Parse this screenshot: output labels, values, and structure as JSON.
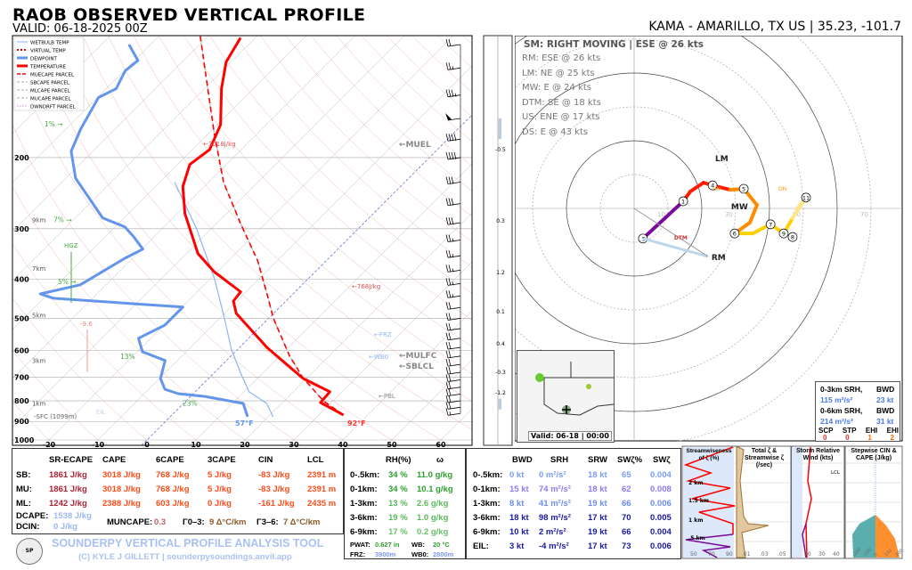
{
  "header": {
    "title": "RAOB OBSERVED VERTICAL PROFILE",
    "valid": "VALID: 06-18-2025 00Z",
    "station": "KAMA - AMARILLO, TX US | 35.23, -101.7"
  },
  "legend": [
    "WETBULB TEMP",
    "VIRTUAL TEMP",
    "DEWPOINT",
    "TEMPERATURE",
    "MUECAPE PARCEL",
    "SBCAPE PARCEL",
    "MLCAPE PARCEL",
    "MUCAPE PARCEL",
    "DWNDRFT PARCEL"
  ],
  "colors": {
    "temperature": "#ff0000",
    "dewpoint": "#6495ed",
    "wetbulb": "#8fb3f5",
    "parcel": "#ff0000",
    "rh": "#2e9e2e",
    "hodo_0_1": "#7a0a9a",
    "hodo_1_3": "#ff1a00",
    "hodo_3_6": "#ff8c00",
    "hodo_6_9": "#ffd000",
    "hodo_9_12": "#ffe58a"
  },
  "chart_data": [
    {
      "type": "line",
      "name": "skew-t",
      "ylabel": "",
      "xlim": [
        -20,
        60
      ],
      "ylim": [
        1000,
        100
      ],
      "grid": true,
      "legend_placement": "top-left",
      "xticks": [
        -20,
        -10,
        0,
        10,
        20,
        30,
        40,
        50,
        60
      ],
      "yticks": [
        1000,
        900,
        800,
        700,
        600,
        500,
        400,
        300,
        200
      ],
      "temperature": {
        "pressure": [
          867,
          808,
          760,
          704,
          590,
          486,
          453,
          430,
          383,
          346,
          275,
          236,
          208,
          191,
          166,
          135,
          116,
          101
        ],
        "values": [
          35,
          27.8,
          27.5,
          19.3,
          5.6,
          -7.6,
          -10.7,
          -11.1,
          -20.7,
          -27.6,
          -38.5,
          -44.4,
          -47.5,
          -46.5,
          -49.3,
          -56.5,
          -61,
          -63
        ]
      },
      "dewpoint": {
        "pressure": [
          876,
          812,
          780,
          768,
          749,
          704,
          636,
          605,
          560,
          520,
          469,
          446,
          435,
          413,
          355,
          337,
          313,
          297,
          282,
          225,
          193,
          170,
          142,
          135,
          122,
          115,
          105
        ],
        "values": [
          15.8,
          12.2,
          2.9,
          -3.1,
          -6.7,
          -9.8,
          -12.5,
          -18.9,
          -22.5,
          -19.8,
          -19.8,
          -48,
          -51.6,
          -45.3,
          -41.6,
          -39.8,
          -44.4,
          -48,
          -54.4,
          -68,
          -74.4,
          -77,
          -79.8,
          -78,
          -79.8,
          -79.3,
          -84.4
        ]
      },
      "wetbulb": {
        "pressure": [
          876,
          812,
          760,
          690,
          600,
          500,
          400,
          300,
          230
        ],
        "values": [
          21,
          17,
          11,
          6,
          -1,
          -9,
          -19,
          -33,
          -47
        ]
      },
      "mu_parcel": {
        "pressure": [
          867,
          800,
          700,
          620,
          500,
          435,
          360,
          290,
          230,
          174,
          100
        ],
        "values": [
          35,
          28,
          19,
          12,
          1,
          -5.3,
          -14,
          -25.3,
          -37,
          -48.9,
          -71.6
        ]
      },
      "surface_temp_label": "92°F",
      "surface_dewpoint_label": "57°F",
      "annotations": {
        "mucape": "←3018J/kg",
        "mu6cape": "←768J/kg",
        "muel": "←MUEL",
        "frz": "←FRZ",
        "wb0": "←WB0",
        "mulfc": "←MULFC",
        "sblcl": "←SBLCL",
        "pbl": "←PBL",
        "eil": "EIL",
        "sfc": "-SFC (1099m)",
        "hgz": "HGZ",
        "neg": "-9.6"
      },
      "heights": [
        {
          "label": "1km",
          "p": 810
        },
        {
          "label": "3km",
          "p": 635
        },
        {
          "label": "5km",
          "p": 490
        },
        {
          "label": "7km",
          "p": 375
        },
        {
          "label": "9km",
          "p": 285
        }
      ],
      "rh_labels": [
        {
          "label": "1% →",
          "p": 165
        },
        {
          "label": "7% →",
          "p": 285
        },
        {
          "label": "5% →",
          "p": 405
        },
        {
          "label": "13%",
          "p": 620
        },
        {
          "label": "23%",
          "p": 810
        }
      ],
      "winds": {
        "pressure": [
          860,
          830,
          800,
          770,
          740,
          710,
          680,
          650,
          620,
          590,
          560,
          530,
          500,
          470,
          440,
          410,
          380,
          350,
          320,
          290,
          260,
          230,
          200,
          180,
          160,
          140,
          120,
          105
        ],
        "speed_kt": [
          15,
          20,
          20,
          20,
          20,
          20,
          20,
          20,
          20,
          20,
          20,
          20,
          20,
          20,
          25,
          25,
          25,
          25,
          25,
          30,
          30,
          30,
          40,
          40,
          50,
          35,
          25,
          20
        ]
      },
      "omega_labels": [
        "-0.5",
        "0.3",
        "1.2",
        "0.1",
        "0.4",
        "-0.3",
        "-1.2"
      ]
    },
    {
      "type": "line",
      "name": "hodograph",
      "rings_kt": [
        10,
        30,
        50,
        70
      ],
      "u": [
        2.6,
        14.5,
        16.6,
        20.5,
        23.2,
        28.4,
        32.4,
        36.3,
        34.2,
        29.7,
        35,
        40.3,
        44.2,
        46.8,
        50.8,
        48
      ],
      "v": [
        -8.9,
        2.1,
        5,
        7.6,
        6.8,
        5.5,
        5.8,
        1,
        -4.2,
        -7.4,
        -7.4,
        -4.7,
        -7.4,
        -2.9,
        3.2,
        -0.3
      ],
      "segment": [
        0,
        0,
        1,
        1,
        1,
        1,
        2,
        2,
        2,
        2,
        3,
        3,
        3,
        3,
        4,
        4
      ],
      "markers": [
        {
          "label": ".5",
          "i": 0
        },
        {
          "label": "1",
          "i": 1
        },
        {
          "label": "4",
          "i": 4
        },
        {
          "label": "5",
          "i": 6
        },
        {
          "label": "6",
          "i": 9
        },
        {
          "label": "7",
          "i": 11
        },
        {
          "label": "9",
          "i": 12
        },
        {
          "label": "8",
          "i": 12
        },
        {
          "label": "11",
          "i": 14
        }
      ],
      "motions": [
        {
          "label": "RM",
          "u": 21.8,
          "v": -14.2
        },
        {
          "label": "LM",
          "u": 22.9,
          "v": 15
        },
        {
          "label": "MW",
          "u": 27.6,
          "v": 0.8
        },
        {
          "label": "DTM",
          "u": 13.9,
          "v": -10.3
        }
      ],
      "un_label": "UN",
      "dn_label": "DN"
    }
  ],
  "hodo_text": {
    "sm": "SM: RIGHT MOVING | ESE @ 26 kts",
    "lines": [
      "RM: ESE @ 26 kts",
      "LM: NE @ 25 kts",
      "MW: E @ 24 kts",
      "DTM: SE @ 18 kts",
      "US: ENE @ 17 kts",
      "DS: E @ 43 kts"
    ]
  },
  "srh_box": {
    "h1": "0-3km SRH,",
    "b1": "BWD",
    "v1": "115 m²/s²",
    "w1": "23 kt",
    "h2": "0-6km SRH,",
    "b2": "BWD",
    "v2": "214 m²/s²",
    "w2": "31 kt",
    "labels": [
      "SCP",
      "STP",
      "EHI",
      "EHI"
    ],
    "values": [
      "0",
      "0",
      "1",
      "2"
    ]
  },
  "map": {
    "valid": "Valid: 06-18 | 00:00"
  },
  "thermo": {
    "headers": [
      "SR-ECAPE",
      "CAPE",
      "6CAPE",
      "3CAPE",
      "CIN",
      "LCL"
    ],
    "rows": [
      {
        "label": "SB:",
        "v": [
          "1861 J/kg",
          "3018 J/kg",
          "768 J/kg",
          "5 J/kg",
          "-83 J/kg",
          "2391 m"
        ]
      },
      {
        "label": "MU:",
        "v": [
          "1861 J/kg",
          "3018 J/kg",
          "768 J/kg",
          "5 J/kg",
          "-83 J/kg",
          "2391 m"
        ]
      },
      {
        "label": "ML:",
        "v": [
          "1242 J/kg",
          "2388 J/kg",
          "603 J/kg",
          "0 J/kg",
          "-161 J/kg",
          "2435 m"
        ]
      }
    ],
    "dcape_label": "DCAPE:",
    "dcape": "1538 J/kg",
    "dcin_label": "DCIN:",
    "dcin": "0 J/kg",
    "muncape_label": "MUNCAPE:",
    "muncape": "0.3",
    "g03_label": "Γ0–3:",
    "g03": "9 Δ°C/km",
    "g36_label": "Γ3–6:",
    "g36": "7 Δ°C/km"
  },
  "moist": {
    "headers": [
      "RH(%)",
      "ω"
    ],
    "rows": [
      {
        "label": "0-.5km:",
        "rh": "34 %",
        "w": "11.0 g/kg"
      },
      {
        "label": "0-1km:",
        "rh": "34 %",
        "w": "10.1 g/kg"
      },
      {
        "label": "1-3km:",
        "rh": "13 %",
        "w": "2.6 g/kg"
      },
      {
        "label": "3-6km:",
        "rh": "19 %",
        "w": "1.0 g/kg"
      },
      {
        "label": "6-9km:",
        "rh": "17 %",
        "w": "0.2 g/kg"
      }
    ],
    "pwat_label": "PWAT:",
    "pwat": "0.627 in",
    "wb_label": "WB:",
    "wb": "20 °C",
    "frz_label": "FRZ:",
    "frz": "3900m",
    "wb0_label": "WB0:",
    "wb0": "2800m"
  },
  "kinem": {
    "headers": [
      "BWD",
      "SRH",
      "SRW",
      "SWζ%",
      "SWζ"
    ],
    "rows": [
      {
        "label": "0-.5km:",
        "v": [
          "0 kt",
          "0 m²/s²",
          "18 kt",
          "65",
          "0.004"
        ]
      },
      {
        "label": "0-1km:",
        "v": [
          "15 kt",
          "74 m²/s²",
          "18 kt",
          "62",
          "0.008"
        ]
      },
      {
        "label": "1-3km:",
        "v": [
          "8 kt",
          "41 m²/s²",
          "19 kt",
          "66",
          "0.006"
        ]
      },
      {
        "label": "3-6km:",
        "v": [
          "18 kt",
          "98 m²/s²",
          "17 kt",
          "70",
          "0.005"
        ]
      },
      {
        "label": "6-9km:",
        "v": [
          "10 kt",
          "2 m²/s²",
          "19 kt",
          "66",
          "0.004"
        ]
      },
      {
        "label": "EIL:",
        "v": [
          "3 kt",
          "-4 m²/s²",
          "17 kt",
          "73",
          "0.006"
        ]
      }
    ]
  },
  "minipanels": {
    "p1": "Streamwiseness of ζ (%)",
    "p1_ticks": [
      "50",
      "70",
      "90"
    ],
    "p1_heights": [
      "2 km",
      "1.5 km",
      "1 km",
      ".5 km"
    ],
    "p2": "Total ζ & Streamwise ζ (/sec)",
    "p2_ticks": [
      ".01",
      ".03",
      ".05"
    ],
    "p3": "Storm Relative Wind (kts)",
    "p3_lcl": "LCL",
    "p3_ticks": [
      "20",
      "30",
      "40"
    ],
    "p4": "Stepwise CIN & CAPE (J/kg)",
    "p4_ticks": [
      "-200",
      "-100",
      "0",
      "100",
      "200"
    ]
  },
  "footer": {
    "tool": "SOUNDERPY VERTICAL PROFILE ANALYSIS TOOL",
    "credit": "(C) KYLE J GILLETT | sounderpysoundings.anvil.app",
    "logo": "SOUNDERPY"
  }
}
